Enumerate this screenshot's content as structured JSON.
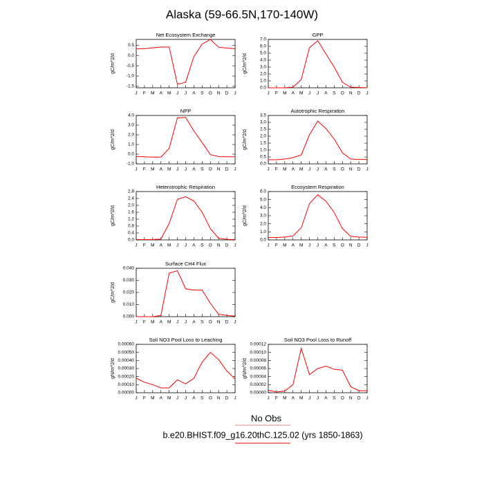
{
  "title": "Alaska (59-66.5N,170-140W)",
  "legend": [
    {
      "name": "No Obs",
      "color": "#d08a8a"
    },
    {
      "name": "b.e20.BHIST.f09_g16.20thC.125.02 (yrs 1850-1863)",
      "color": "#ff0000"
    }
  ],
  "chart_data": [
    {
      "type": "line",
      "title": "Net Ecosystem Exchange",
      "y_label": "gC/m^2/d",
      "color": "#ff0000",
      "categories": [
        "J",
        "F",
        "M",
        "A",
        "M",
        "J",
        "J",
        "A",
        "S",
        "O",
        "N",
        "D",
        "J"
      ],
      "values": [
        0.32,
        0.33,
        0.37,
        0.41,
        0.41,
        -1.4,
        -1.3,
        -0.05,
        0.55,
        0.78,
        0.4,
        0.36,
        0.33
      ],
      "ylim": [
        -1.57,
        0.78
      ],
      "yticks": [
        0.5,
        {
          "value": 0,
          "label": "0.0"
        },
        -0.5,
        {
          "value": -1,
          "label": "-1.0"
        },
        -1.5
      ]
    },
    {
      "type": "line",
      "title": "GPP",
      "y_label": "gC/m^2/d",
      "color": "#ff0000",
      "categories": [
        "J",
        "F",
        "M",
        "A",
        "M",
        "J",
        "J",
        "A",
        "S",
        "O",
        "N",
        "D",
        "J"
      ],
      "values": [
        0,
        0,
        0,
        0.1,
        1.2,
        5.8,
        6.8,
        4.9,
        3.0,
        0.8,
        0.1,
        0.05,
        0
      ],
      "ylim": [
        0,
        7
      ],
      "yticks": [
        {
          "value": 0,
          "label": "0.0"
        },
        {
          "value": 1,
          "label": "1.0"
        },
        {
          "value": 2,
          "label": "2.0"
        },
        {
          "value": 3,
          "label": "3.0"
        },
        {
          "value": 4,
          "label": "4.0"
        },
        {
          "value": 5,
          "label": "5.0"
        },
        {
          "value": 6,
          "label": "6.0"
        },
        {
          "value": 7,
          "label": "7.0"
        }
      ]
    },
    {
      "type": "line",
      "title": "NPP",
      "y_label": "gC/m^2/d",
      "color": "#ff0000",
      "categories": [
        "J",
        "F",
        "M",
        "A",
        "M",
        "J",
        "J",
        "A",
        "S",
        "O",
        "N",
        "D",
        "J"
      ],
      "values": [
        -0.25,
        -0.27,
        -0.3,
        -0.3,
        0.6,
        3.75,
        3.8,
        2.4,
        1.2,
        -0.05,
        -0.25,
        -0.27,
        -0.27
      ],
      "ylim": [
        -1,
        4
      ],
      "yticks": [
        {
          "value": -1,
          "label": "-1.0"
        },
        {
          "value": 0,
          "label": "0.0"
        },
        {
          "value": 1,
          "label": "1.0"
        },
        {
          "value": 2,
          "label": "2.0"
        },
        {
          "value": 3,
          "label": "3.0"
        },
        {
          "value": 4,
          "label": "4.0"
        }
      ]
    },
    {
      "type": "line",
      "title": "Autotrophic Respiration",
      "y_label": "gC/m^2/d",
      "color": "#ff0000",
      "categories": [
        "J",
        "F",
        "M",
        "A",
        "M",
        "J",
        "J",
        "A",
        "S",
        "O",
        "N",
        "D",
        "J"
      ],
      "values": [
        0.3,
        0.3,
        0.35,
        0.45,
        0.65,
        2.1,
        3.1,
        2.55,
        1.8,
        0.8,
        0.35,
        0.32,
        0.32
      ],
      "ylim": [
        0,
        3.5
      ],
      "yticks": [
        {
          "value": 0,
          "label": "0.0"
        },
        0.5,
        {
          "value": 1,
          "label": "1.0"
        },
        1.5,
        {
          "value": 2,
          "label": "2.0"
        },
        2.5,
        {
          "value": 3,
          "label": "3.0"
        },
        3.5
      ]
    },
    {
      "type": "line",
      "title": "Heterotrophic Respiration",
      "y_label": "gC/m^2/d",
      "color": "#ff0000",
      "categories": [
        "J",
        "F",
        "M",
        "A",
        "M",
        "J",
        "J",
        "A",
        "S",
        "O",
        "N",
        "D",
        "J"
      ],
      "values": [
        0.02,
        0.02,
        0.02,
        0.05,
        0.95,
        2.35,
        2.5,
        2.25,
        1.6,
        0.65,
        0.1,
        0.03,
        0.02
      ],
      "ylim": [
        0,
        2.8
      ],
      "yticks": [
        {
          "value": 0,
          "label": "0.0"
        },
        0.4,
        0.8,
        1.2,
        1.6,
        {
          "value": 2,
          "label": "2.0"
        },
        2.4,
        2.8
      ]
    },
    {
      "type": "line",
      "title": "Ecosystem Respiration",
      "y_label": "gC/m^2/d",
      "color": "#ff0000",
      "categories": [
        "J",
        "F",
        "M",
        "A",
        "M",
        "J",
        "J",
        "A",
        "S",
        "O",
        "N",
        "D",
        "J"
      ],
      "values": [
        0.3,
        0.3,
        0.35,
        0.5,
        1.5,
        4.5,
        5.6,
        4.8,
        3.4,
        1.4,
        0.45,
        0.35,
        0.32
      ],
      "ylim": [
        0,
        6
      ],
      "yticks": [
        {
          "value": 0,
          "label": "0.0"
        },
        {
          "value": 1,
          "label": "1.0"
        },
        {
          "value": 2,
          "label": "2.0"
        },
        {
          "value": 3,
          "label": "3.0"
        },
        {
          "value": 4,
          "label": "4.0"
        },
        {
          "value": 5,
          "label": "5.0"
        },
        {
          "value": 6,
          "label": "6.0"
        }
      ]
    },
    {
      "type": "line",
      "title": "Surface CH4 Flux",
      "y_label": "gC/m^2/d",
      "color": "#ff0000",
      "categories": [
        "J",
        "F",
        "M",
        "A",
        "M",
        "J",
        "J",
        "A",
        "S",
        "O",
        "N",
        "D",
        "J"
      ],
      "values": [
        0,
        0,
        0,
        0.001,
        0.036,
        0.038,
        0.023,
        0.022,
        0.022,
        0.011,
        0.002,
        0.001,
        0.0005
      ],
      "ylim": [
        0,
        0.04
      ],
      "yticks": [
        {
          "value": 0,
          "label": "0.000"
        },
        {
          "value": 0.01,
          "label": "0.010"
        },
        {
          "value": 0.02,
          "label": "0.020"
        },
        {
          "value": 0.03,
          "label": "0.030"
        },
        {
          "value": 0.04,
          "label": "0.040"
        }
      ]
    },
    {
      "type": "line",
      "title": "Soil NO3 Pool Loss to Leaching",
      "y_label": "gN/m^2/d",
      "color": "#ff0000",
      "categories": [
        "J",
        "F",
        "M",
        "A",
        "M",
        "J",
        "J",
        "A",
        "S",
        "O",
        "N",
        "D",
        "J"
      ],
      "values": [
        0.00018,
        0.00013,
        0.0001,
        6e-05,
        6e-05,
        0.00016,
        0.00011,
        0.00018,
        0.00038,
        0.0005,
        0.00041,
        0.00027,
        0.00017
      ],
      "ylim": [
        0,
        0.0006
      ],
      "yticks": [
        {
          "value": 0,
          "label": "0.00000"
        },
        {
          "value": 0.0001,
          "label": "0.00010"
        },
        {
          "value": 0.0002,
          "label": "0.00020"
        },
        {
          "value": 0.0003,
          "label": "0.00030"
        },
        {
          "value": 0.0004,
          "label": "0.00040"
        },
        {
          "value": 0.0005,
          "label": "0.00050"
        },
        {
          "value": 0.0006,
          "label": "0.00060"
        }
      ]
    },
    {
      "type": "line",
      "title": "Soil NO3 Pool Loss to Runoff",
      "y_label": "gN/m^2/d",
      "color": "#ff0000",
      "categories": [
        "J",
        "F",
        "M",
        "A",
        "M",
        "J",
        "J",
        "A",
        "S",
        "O",
        "N",
        "D",
        "J"
      ],
      "values": [
        6e-06,
        2e-06,
        4e-06,
        2e-05,
        0.00011,
        4.5e-05,
        6e-05,
        6.6e-05,
        5.8e-05,
        5.6e-05,
        1.5e-05,
        5e-06,
        5e-06
      ],
      "ylim": [
        0,
        0.00012
      ],
      "yticks": [
        {
          "value": 0,
          "label": "0.00000"
        },
        {
          "value": 2e-05,
          "label": "0.00002"
        },
        {
          "value": 4e-05,
          "label": "0.00004"
        },
        {
          "value": 6e-05,
          "label": "0.00006"
        },
        {
          "value": 8e-05,
          "label": "0.00008"
        },
        {
          "value": 0.0001,
          "label": "0.00010"
        },
        {
          "value": 0.00012,
          "label": "0.00012"
        }
      ]
    }
  ]
}
